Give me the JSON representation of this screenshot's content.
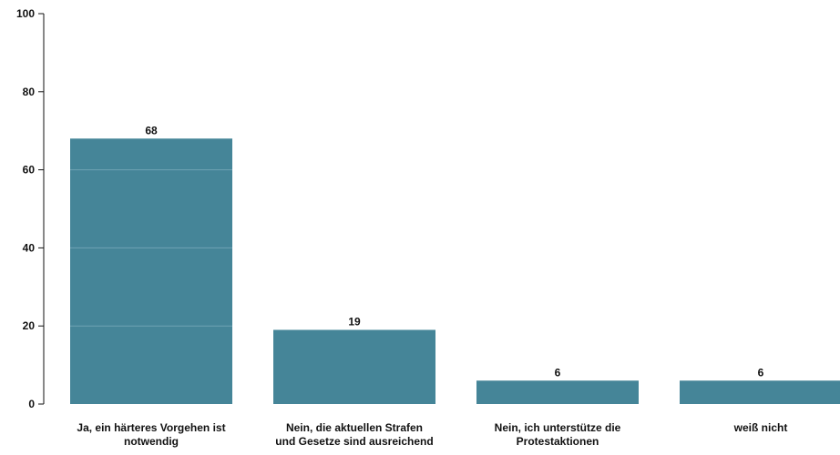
{
  "chart_data": {
    "type": "bar",
    "title": "",
    "xlabel": "",
    "ylabel": "",
    "ylim": [
      0,
      100
    ],
    "yticks": [
      0,
      20,
      40,
      60,
      80,
      100
    ],
    "categories": [
      [
        "Ja, ein härteres Vorgehen ist",
        "notwendig"
      ],
      [
        "Nein, die aktuellen Strafen",
        "und Gesetze sind ausreichend"
      ],
      [
        "Nein, ich unterstütze die",
        "Protestaktionen"
      ],
      [
        "weiß nicht"
      ]
    ],
    "values": [
      68,
      19,
      6,
      6
    ],
    "value_labels": [
      "68",
      "19",
      "6",
      "6"
    ],
    "grid": "horizontal lines drawn inside bars only",
    "legend": "none"
  },
  "colors": {
    "bar": "#458598",
    "grid_in_bar": "#6fa3b3",
    "axis": "#111111"
  }
}
